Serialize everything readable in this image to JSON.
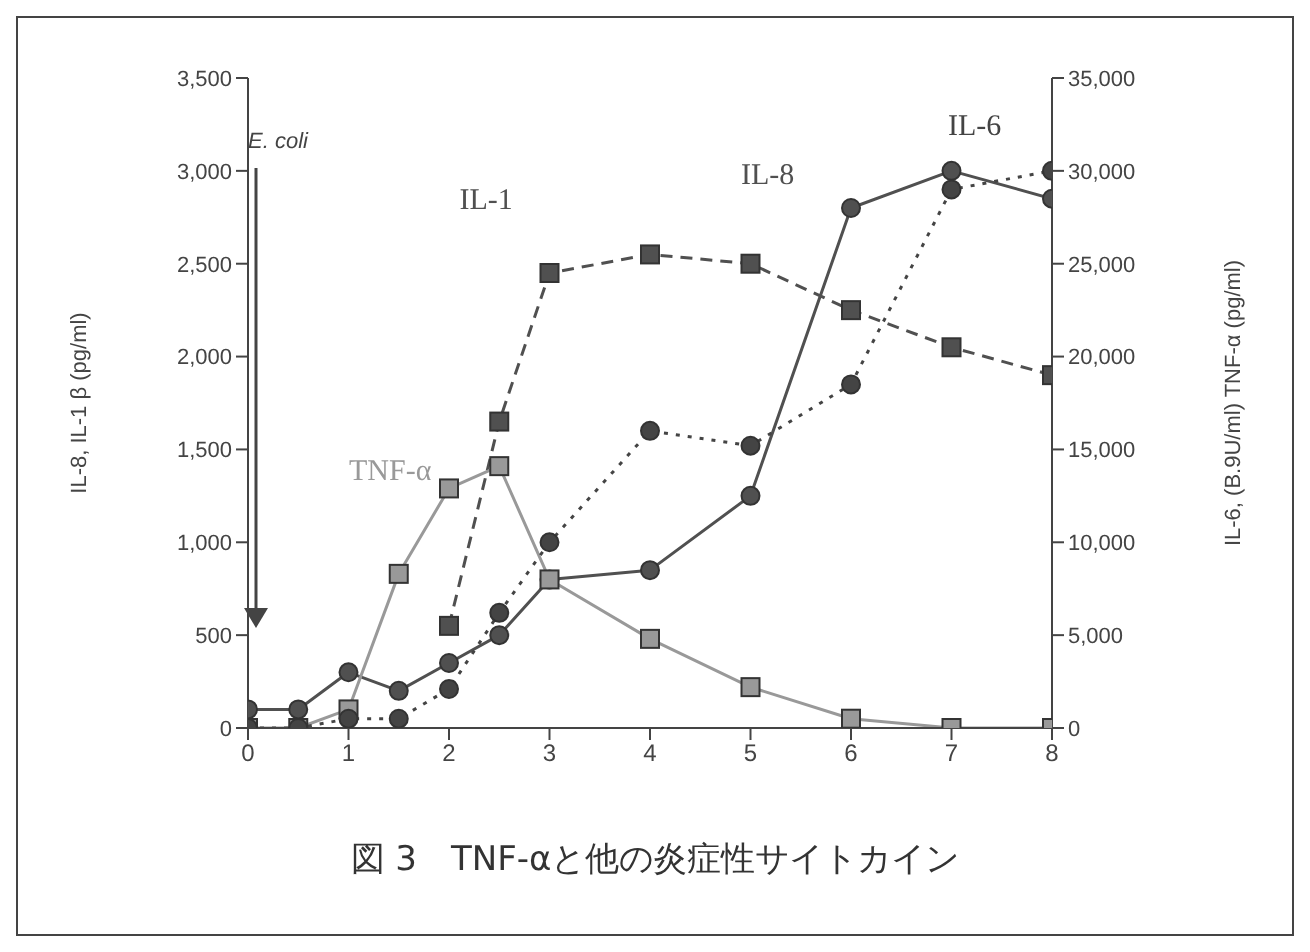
{
  "chart_data": {
    "type": "line",
    "title": "図 3　TNF-αと他の炎症性サイトカイン",
    "ylabel": "IL-8, IL-1 β (pg/ml)",
    "y2label": "IL-6, (B.9U/ml) TNF-α (pg/ml)",
    "x": [
      0,
      0.5,
      1,
      1.5,
      2,
      2.5,
      3,
      4,
      5,
      6,
      7,
      8
    ],
    "xlim": [
      0,
      8
    ],
    "xticks": [
      0,
      1,
      2,
      3,
      4,
      5,
      6,
      7,
      8
    ],
    "ylim": [
      0,
      3500
    ],
    "yticks": [
      {
        "value": 0,
        "label": "0"
      },
      {
        "value": 500,
        "label": "500"
      },
      {
        "value": 1000,
        "label": "1,000"
      },
      {
        "value": 1500,
        "label": "1,500"
      },
      {
        "value": 2000,
        "label": "2,000"
      },
      {
        "value": 2500,
        "label": "2,500"
      },
      {
        "value": 3000,
        "label": "3,000"
      },
      {
        "value": 3500,
        "label": "3,500"
      }
    ],
    "y2lim": [
      0,
      35000
    ],
    "y2ticks": [
      {
        "value": 0,
        "label": "0"
      },
      {
        "value": 5000,
        "label": "5,000"
      },
      {
        "value": 10000,
        "label": "10,000"
      },
      {
        "value": 15000,
        "label": "15,000"
      },
      {
        "value": 20000,
        "label": "20,000"
      },
      {
        "value": 25000,
        "label": "25,000"
      },
      {
        "value": 30000,
        "label": "30,000"
      },
      {
        "value": 35000,
        "label": "35,000"
      }
    ],
    "series": [
      {
        "name": "IL-1",
        "color": "#505050",
        "marker": "square",
        "line_style": "dashed",
        "values": [
          null,
          null,
          null,
          null,
          550,
          1650,
          2450,
          2550,
          2500,
          2250,
          2050,
          1900
        ]
      },
      {
        "name": "IL-8",
        "color": "#505050",
        "marker": "circle",
        "line_style": "solid",
        "values": [
          100,
          100,
          300,
          200,
          350,
          500,
          800,
          850,
          1250,
          2800,
          3000,
          2850
        ]
      },
      {
        "name": "TNF-α",
        "color": "#999999",
        "marker": "square",
        "line_style": "solid",
        "axis": "y2",
        "values": [
          0,
          0,
          1000,
          8300,
          12900,
          14100,
          8000,
          4800,
          2200,
          500,
          0,
          0
        ]
      },
      {
        "name": "IL-6",
        "color": "#444444",
        "marker": "circle",
        "line_style": "dotted",
        "axis": "y2",
        "values": [
          0,
          0,
          500,
          500,
          2100,
          6200,
          10000,
          16000,
          15200,
          18500,
          29000,
          30000
        ]
      }
    ],
    "annotations": [
      "E. coli"
    ],
    "grid": false,
    "legend": false
  }
}
